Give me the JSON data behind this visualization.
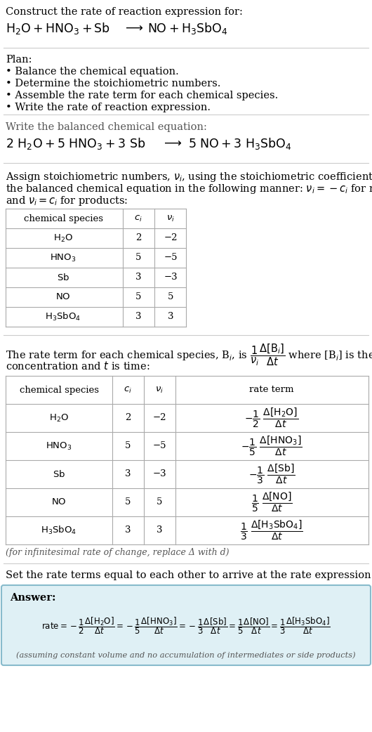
{
  "bg_color": "#ffffff",
  "text_color": "#000000",
  "gray_color": "#555555",
  "table_line_color": "#aaaaaa",
  "section_line_color": "#cccccc",
  "answer_box_color": "#dff0f5",
  "answer_border_color": "#88bbcc",
  "base_fs": 10.5,
  "small_fs": 9.5,
  "section1_title": "Construct the rate of reaction expression for:",
  "section1_reaction": "H_2O + HNO_3 + Sb",
  "section1_arrow": "→",
  "section1_products": "NO + H_3SbO_4",
  "plan_header": "Plan:",
  "plan_items": [
    "• Balance the chemical equation.",
    "• Determine the stoichiometric numbers.",
    "• Assemble the rate term for each chemical species.",
    "• Write the rate of reaction expression."
  ],
  "balanced_header": "Write the balanced chemical equation:",
  "balanced_reaction": "2 H_2O + 5 HNO_3 + 3 Sb",
  "balanced_arrow": "→",
  "balanced_products": "5 NO + 3 H_3SbO_4",
  "assign_para": "Assign stoichiometric numbers, ν_i, using the stoichiometric coefficients, c_i, from\nthe balanced chemical equation in the following manner: ν_i = −c_i for reactants\nand ν_i = c_i for products:",
  "table1_species": [
    "H₂O",
    "HNO₃",
    "Sb",
    "NO",
    "H₃SbO₄"
  ],
  "table1_ci": [
    "2",
    "5",
    "3",
    "5",
    "3"
  ],
  "table1_ni": [
    "−2",
    "−5",
    "−3",
    "5",
    "3"
  ],
  "rate_para1": "The rate term for each chemical species, B_i, is",
  "rate_para2": "where [B_i] is the amount",
  "rate_para3": "concentration and t is time:",
  "table2_species": [
    "H₂O",
    "HNO₃",
    "Sb",
    "NO",
    "H₃SbO₄"
  ],
  "table2_ci": [
    "2",
    "5",
    "3",
    "5",
    "3"
  ],
  "table2_ni": [
    "−2",
    "−5",
    "−3",
    "5",
    "3"
  ],
  "infinitesimal_note": "(for infinitesimal rate of change, replace Δ with d)",
  "set_rate_text": "Set the rate terms equal to each other to arrive at the rate expression:",
  "answer_label": "Answer:",
  "assuming_note": "(assuming constant volume and no accumulation of intermediates or side products)"
}
